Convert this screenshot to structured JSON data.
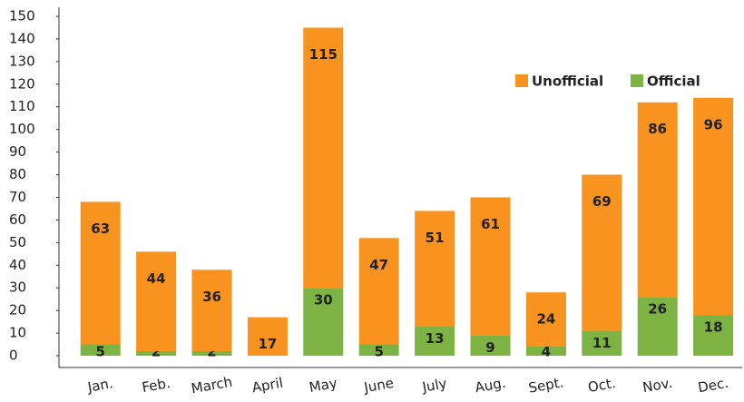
{
  "chart_data": {
    "type": "stacked-bar",
    "categories": [
      "Jan.",
      "Feb.",
      "March",
      "April",
      "May",
      "June",
      "July",
      "Aug.",
      "Sept.",
      "Oct.",
      "Nov.",
      "Dec."
    ],
    "series": [
      {
        "name": "Official",
        "color": "#7cb342",
        "values": [
          5,
          2,
          2,
          null,
          30,
          5,
          13,
          9,
          4,
          11,
          26,
          18
        ]
      },
      {
        "name": "Unofficial",
        "color": "#f7931e",
        "values": [
          63,
          44,
          36,
          17,
          115,
          47,
          51,
          61,
          24,
          69,
          86,
          96
        ]
      }
    ],
    "ylim": [
      0,
      150
    ],
    "yticks": [
      0,
      10,
      20,
      30,
      40,
      50,
      60,
      70,
      80,
      90,
      100,
      110,
      120,
      130,
      140,
      150
    ],
    "legend": "top-right"
  }
}
